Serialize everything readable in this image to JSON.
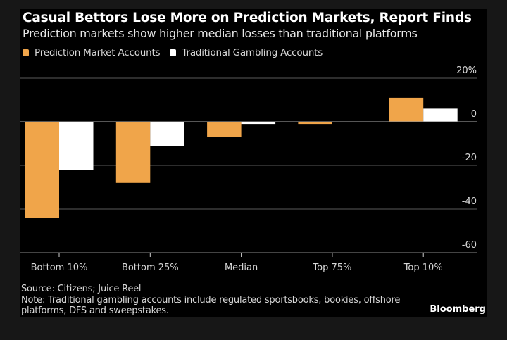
{
  "header": {
    "title": "Casual Bettors Lose More on Prediction Markets, Report Finds",
    "subtitle": "Prediction markets show higher median losses than traditional platforms"
  },
  "footer": {
    "source": "Source: Citizens; Juice Reel",
    "note_line1": "Note: Traditional gambling accounts include regulated sportsbooks, bookies, offshore",
    "note_line2": "platforms, DFS and sweepstakes.",
    "brand": "Bloomberg"
  },
  "colors": {
    "prediction": "#F0A54A",
    "traditional": "#FFFFFF",
    "grid": "#5a5a5a",
    "text": "#d8d8d8"
  },
  "chart_data": {
    "type": "bar",
    "title": "Casual Bettors Lose More on Prediction Markets, Report Finds",
    "subtitle": "Prediction markets show higher median losses than traditional platforms",
    "xlabel": "",
    "ylabel": "",
    "categories": [
      "Bottom 10%",
      "Bottom 25%",
      "Median",
      "Top 75%",
      "Top 10%"
    ],
    "series": [
      {
        "name": "Prediction Market Accounts",
        "color": "#F0A54A",
        "values": [
          -44,
          -28,
          -7,
          -1,
          11
        ]
      },
      {
        "name": "Traditional Gambling Accounts",
        "color": "#FFFFFF",
        "values": [
          -22,
          -11,
          -1,
          0,
          6
        ]
      }
    ],
    "ylim": [
      -60,
      20
    ],
    "yticks": [
      20,
      0,
      -20,
      -40,
      -60
    ],
    "ytick_labels": [
      "20%",
      "0",
      "-20",
      "-40",
      "-60"
    ],
    "grid": true,
    "y_axis_side": "right",
    "legend_position": "top-left"
  }
}
